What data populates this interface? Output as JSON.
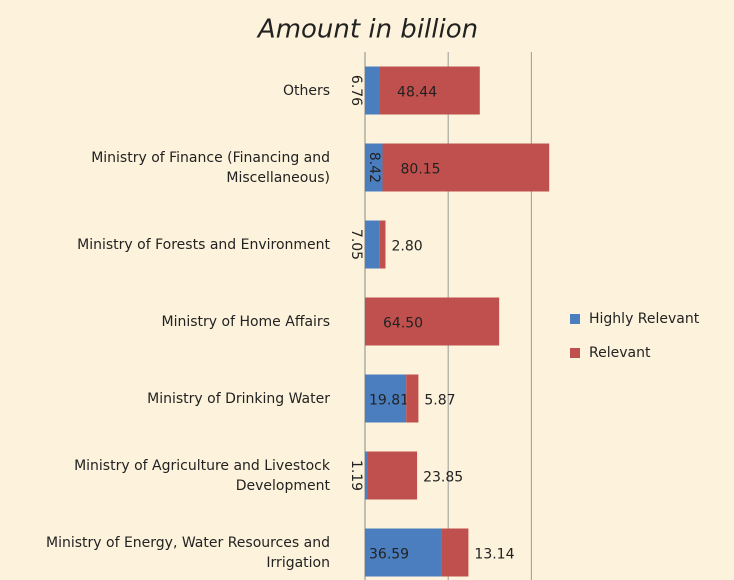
{
  "chart_data": {
    "type": "stacked-bar-horizontal",
    "title": "Amount in billion",
    "categories": [
      "Others",
      "Ministry of Finance (Financing and Miscellaneous)",
      "Ministry of Forests and Environment",
      "Ministry of Home Affairs",
      "Ministry of Drinking Water",
      "Ministry of Agriculture and Livestock Development",
      "Ministry of Energy, Water Resources and Irrigation"
    ],
    "series": [
      {
        "name": "Highly Relevant",
        "color": "#4a7ebf",
        "values": [
          6.76,
          8.42,
          7.05,
          null,
          19.81,
          1.19,
          36.59
        ],
        "value_labels": [
          "6.76",
          "8.42",
          "7.05",
          null,
          "19.81",
          "1.19",
          "36.59"
        ]
      },
      {
        "name": "Relevant",
        "color": "#c0504d",
        "values": [
          48.44,
          80.15,
          2.8,
          64.5,
          5.87,
          23.85,
          13.14
        ],
        "value_labels": [
          "48.44",
          "80.15",
          "2.80",
          "64.50",
          "5.87",
          "23.85",
          "13.14"
        ]
      }
    ],
    "xlim": [
      0,
      88
    ],
    "xticks": [
      0,
      40,
      80
    ],
    "grid": true,
    "legend": "right"
  }
}
